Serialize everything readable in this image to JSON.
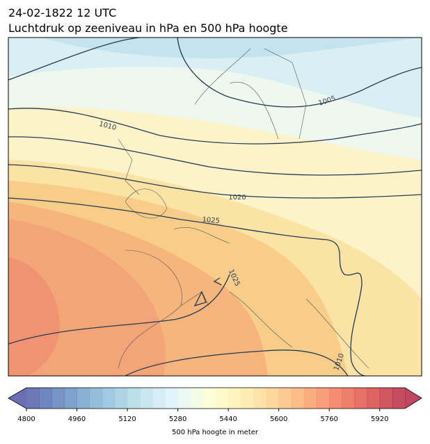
{
  "header": {
    "date": "24-02-1822 12 UTC",
    "title": "Luchtdruk op zeeniveau in hPa en 500 hPa hoogte"
  },
  "map": {
    "contour_labels": [
      "1005",
      "1010",
      "1020",
      "1025",
      "1025",
      "1010"
    ]
  },
  "colorbar": {
    "label": "500 hPa hoogte in meter",
    "lim": [
      4800,
      6000
    ],
    "step": 40,
    "ticks": [
      4800,
      4960,
      5120,
      5280,
      5440,
      5600,
      5760,
      5920
    ]
  }
}
